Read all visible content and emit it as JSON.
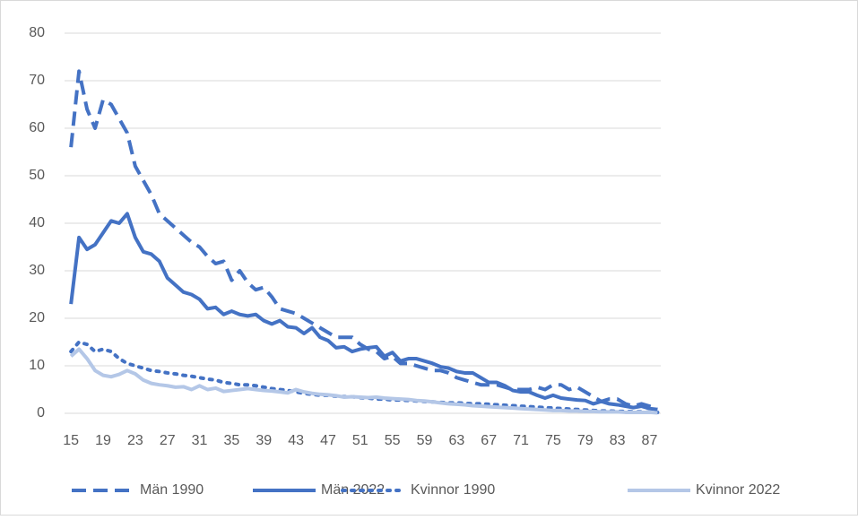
{
  "chart_data": {
    "type": "line",
    "x": [
      15,
      16,
      17,
      18,
      19,
      20,
      21,
      22,
      23,
      24,
      25,
      26,
      27,
      28,
      29,
      30,
      31,
      32,
      33,
      34,
      35,
      36,
      37,
      38,
      39,
      40,
      41,
      42,
      43,
      44,
      45,
      46,
      47,
      48,
      49,
      50,
      51,
      52,
      53,
      54,
      55,
      56,
      57,
      58,
      59,
      60,
      61,
      62,
      63,
      64,
      65,
      66,
      67,
      68,
      69,
      70,
      71,
      72,
      73,
      74,
      75,
      76,
      77,
      78,
      79,
      80,
      81,
      82,
      83,
      84,
      85,
      86,
      87,
      88
    ],
    "xlim": [
      14.2,
      88.4
    ],
    "xticks": [
      15,
      19,
      23,
      27,
      31,
      35,
      39,
      43,
      47,
      51,
      55,
      59,
      63,
      67,
      71,
      75,
      79,
      83,
      87
    ],
    "ylim": [
      0,
      80
    ],
    "yticks": [
      0,
      10,
      20,
      30,
      40,
      50,
      60,
      70,
      80
    ],
    "grid": true,
    "legend": "bottom",
    "series": [
      {
        "name": "Män 1990",
        "color": "#4472c4",
        "dash": "dashed",
        "values": [
          56,
          72,
          64,
          60,
          66,
          65,
          62,
          59,
          52,
          49,
          46,
          42,
          40.5,
          39,
          37.5,
          36,
          35,
          33,
          31.5,
          32,
          28,
          30,
          27.5,
          26,
          26.5,
          24.5,
          22,
          21.5,
          21,
          20,
          19,
          18,
          17,
          16,
          16,
          16,
          14.5,
          13.5,
          13,
          11.5,
          12,
          10.5,
          10.5,
          10,
          9.5,
          9,
          9,
          8.5,
          7.5,
          7,
          6.5,
          6,
          6,
          6,
          5.5,
          5,
          5,
          5,
          5.5,
          5,
          6,
          6,
          5,
          5.5,
          4.5,
          3.5,
          2.5,
          3,
          3,
          2,
          1.5,
          2,
          1.5,
          1
        ]
      },
      {
        "name": "Män 2022",
        "color": "#4472c4",
        "dash": "solid",
        "values": [
          23,
          37,
          34.5,
          35.5,
          38,
          40.5,
          40,
          42,
          37,
          34,
          33.5,
          32,
          28.5,
          27,
          25.5,
          25,
          24,
          22,
          22.3,
          20.8,
          21.5,
          20.8,
          20.5,
          20.8,
          19.5,
          18.8,
          19.5,
          18.2,
          18,
          16.8,
          18,
          16,
          15.3,
          13.8,
          14,
          13,
          13.5,
          13.8,
          14,
          12,
          12.8,
          11,
          11.5,
          11.5,
          11,
          10.5,
          9.8,
          9.5,
          8.8,
          8.5,
          8.5,
          7.5,
          6.5,
          6.5,
          5.8,
          4.8,
          4.5,
          4.5,
          3.8,
          3.2,
          3.8,
          3.2,
          3,
          2.8,
          2.7,
          2,
          2.5,
          2,
          1.8,
          1.5,
          1.2,
          1.5,
          1,
          0.8
        ]
      },
      {
        "name": "Kvinnor 1990",
        "color": "#4472c4",
        "dash": "dotted",
        "values": [
          13,
          15,
          14.5,
          13,
          13.5,
          13,
          11.5,
          10.5,
          10,
          9.5,
          9,
          8.8,
          8.5,
          8.3,
          8,
          7.8,
          7.5,
          7.2,
          7,
          6.5,
          6.3,
          6,
          6,
          5.8,
          5.5,
          5.2,
          5,
          4.8,
          4.5,
          4.2,
          4,
          3.8,
          3.8,
          3.6,
          3.5,
          3.5,
          3.3,
          3.2,
          3,
          3,
          2.8,
          2.8,
          2.7,
          2.6,
          2.5,
          2.4,
          2.3,
          2.2,
          2.2,
          2.1,
          2,
          2,
          1.9,
          1.8,
          1.7,
          1.6,
          1.5,
          1.4,
          1.3,
          1.2,
          1.1,
          1,
          0.9,
          0.8,
          0.7,
          0.6,
          0.5,
          0.5,
          0.4,
          0.4,
          0.3,
          0.3,
          0.2,
          0.2
        ]
      },
      {
        "name": "Kvinnor 2022",
        "color": "#b4c7e7",
        "dash": "solid",
        "values": [
          12,
          13.5,
          11.5,
          9,
          8,
          7.7,
          8.2,
          9,
          8.3,
          7,
          6.3,
          6,
          5.8,
          5.5,
          5.6,
          5,
          5.8,
          5,
          5.3,
          4.6,
          4.8,
          5,
          5.2,
          5,
          4.8,
          4.7,
          4.5,
          4.3,
          5,
          4.5,
          4.2,
          4,
          3.9,
          3.7,
          3.4,
          3.5,
          3.4,
          3.3,
          3.4,
          3.2,
          3.1,
          3,
          2.9,
          2.7,
          2.6,
          2.4,
          2.2,
          2,
          1.9,
          1.8,
          1.6,
          1.5,
          1.4,
          1.3,
          1.2,
          1.1,
          1,
          0.9,
          0.8,
          0.7,
          0.6,
          0.6,
          0.5,
          0.5,
          0.4,
          0.4,
          0.3,
          0.3,
          0.3,
          0.2,
          0.2,
          0.2,
          0.2,
          0.1
        ]
      }
    ]
  }
}
